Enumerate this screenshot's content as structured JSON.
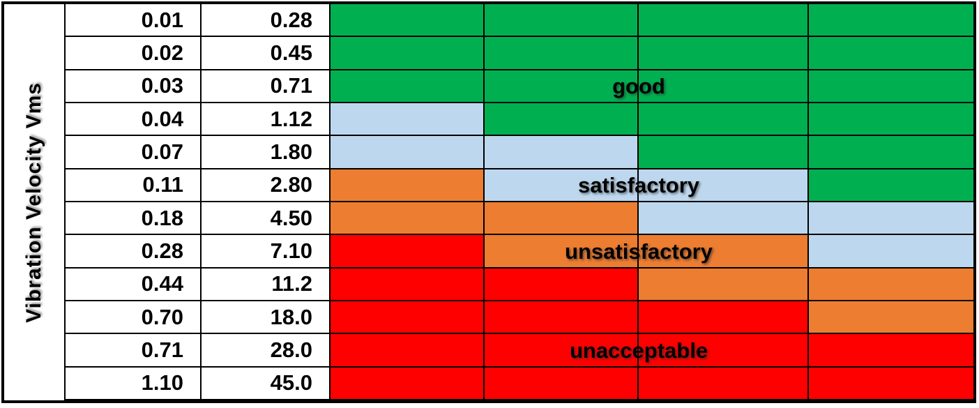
{
  "chart_data": {
    "type": "heatmap",
    "title": "",
    "xlabel": "",
    "ylabel": "Vibration Velocity Vms",
    "n_rows": 12,
    "n_zone_columns": 4,
    "col1_values": [
      "0.01",
      "0.02",
      "0.03",
      "0.04",
      "0.07",
      "0.11",
      "0.18",
      "0.28",
      "0.44",
      "0.70",
      "0.71",
      "1.10"
    ],
    "col2_values": [
      "0.28",
      "0.45",
      "0.71",
      "1.12",
      "1.80",
      "2.80",
      "4.50",
      "7.10",
      "11.2",
      "18.0",
      "28.0",
      "45.0"
    ],
    "zone_grid": [
      [
        "good",
        "good",
        "good",
        "good"
      ],
      [
        "good",
        "good",
        "good",
        "good"
      ],
      [
        "good",
        "good",
        "good",
        "good"
      ],
      [
        "satisfactory",
        "good",
        "good",
        "good"
      ],
      [
        "satisfactory",
        "satisfactory",
        "good",
        "good"
      ],
      [
        "unsatisfactory",
        "satisfactory",
        "satisfactory",
        "good"
      ],
      [
        "unsatisfactory",
        "unsatisfactory",
        "satisfactory",
        "satisfactory"
      ],
      [
        "unacceptable",
        "unsatisfactory",
        "unsatisfactory",
        "satisfactory"
      ],
      [
        "unacceptable",
        "unacceptable",
        "unsatisfactory",
        "unsatisfactory"
      ],
      [
        "unacceptable",
        "unacceptable",
        "unacceptable",
        "unsatisfactory"
      ],
      [
        "unacceptable",
        "unacceptable",
        "unacceptable",
        "unacceptable"
      ],
      [
        "unacceptable",
        "unacceptable",
        "unacceptable",
        "unacceptable"
      ]
    ],
    "zone_annotations": [
      {
        "label": "good",
        "row_index": 2
      },
      {
        "label": "satisfactory",
        "row_index": 5
      },
      {
        "label": "unsatisfactory",
        "row_index": 7
      },
      {
        "label": "unacceptable",
        "row_index": 10
      }
    ],
    "zone_colors": {
      "good": "#00B050",
      "satisfactory": "#BDD7EE",
      "unsatisfactory": "#ED7D31",
      "unacceptable": "#FF0000"
    },
    "grid_line_color": "#000000",
    "background_color": "#FFFFFF"
  }
}
